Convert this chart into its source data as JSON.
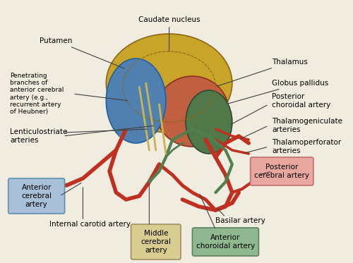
{
  "title": "",
  "background_color": "#f5f0e8",
  "labels": {
    "caudate_nucleus": "Caudate nucleus",
    "thalamus": "Thalamus",
    "putamen": "Putamen",
    "globus_pallidus": "Globus pallidus",
    "penetrating_branches": "Penetrating\nbranches of\nanterior cerebral\nartery (e.g.,\nrecurrent artery\nof Heubner)",
    "lenticulostriate": "Lenticulostriate\narteries",
    "posterior_choroidal": "Posterior\nchoroidal artery",
    "thalamogeniculate": "Thalamogeniculate\narteries",
    "thalamoperforator": "Thalamoperforator\narteries",
    "posterior_cerebral_box": "Posterior\ncerebral artery",
    "basilar": "Basilar artery",
    "anterior_cerebral_box": "Anterior\ncerebral\nartery",
    "internal_carotid": "Internal carotid artery",
    "middle_cerebral_box": "Middle\ncerebral\nartery",
    "anterior_choroidal_box": "Anterior\nchoroidal artery"
  },
  "colors": {
    "caudate": "#c8a830",
    "thalamus": "#c87050",
    "putamen": "#6090c0",
    "globus_pallidus": "#508050",
    "red_artery": "#c03020",
    "green_artery": "#508050",
    "yellow_artery": "#c8b860",
    "blue_region": "#6090c0",
    "box_anterior_cerebral": "#a0b8d0",
    "box_posterior_cerebral": "#e0a0a0",
    "box_middle_cerebral": "#d0c890",
    "box_anterior_choroidal": "#90b890",
    "text_color": "#000000",
    "line_color": "#404040"
  }
}
